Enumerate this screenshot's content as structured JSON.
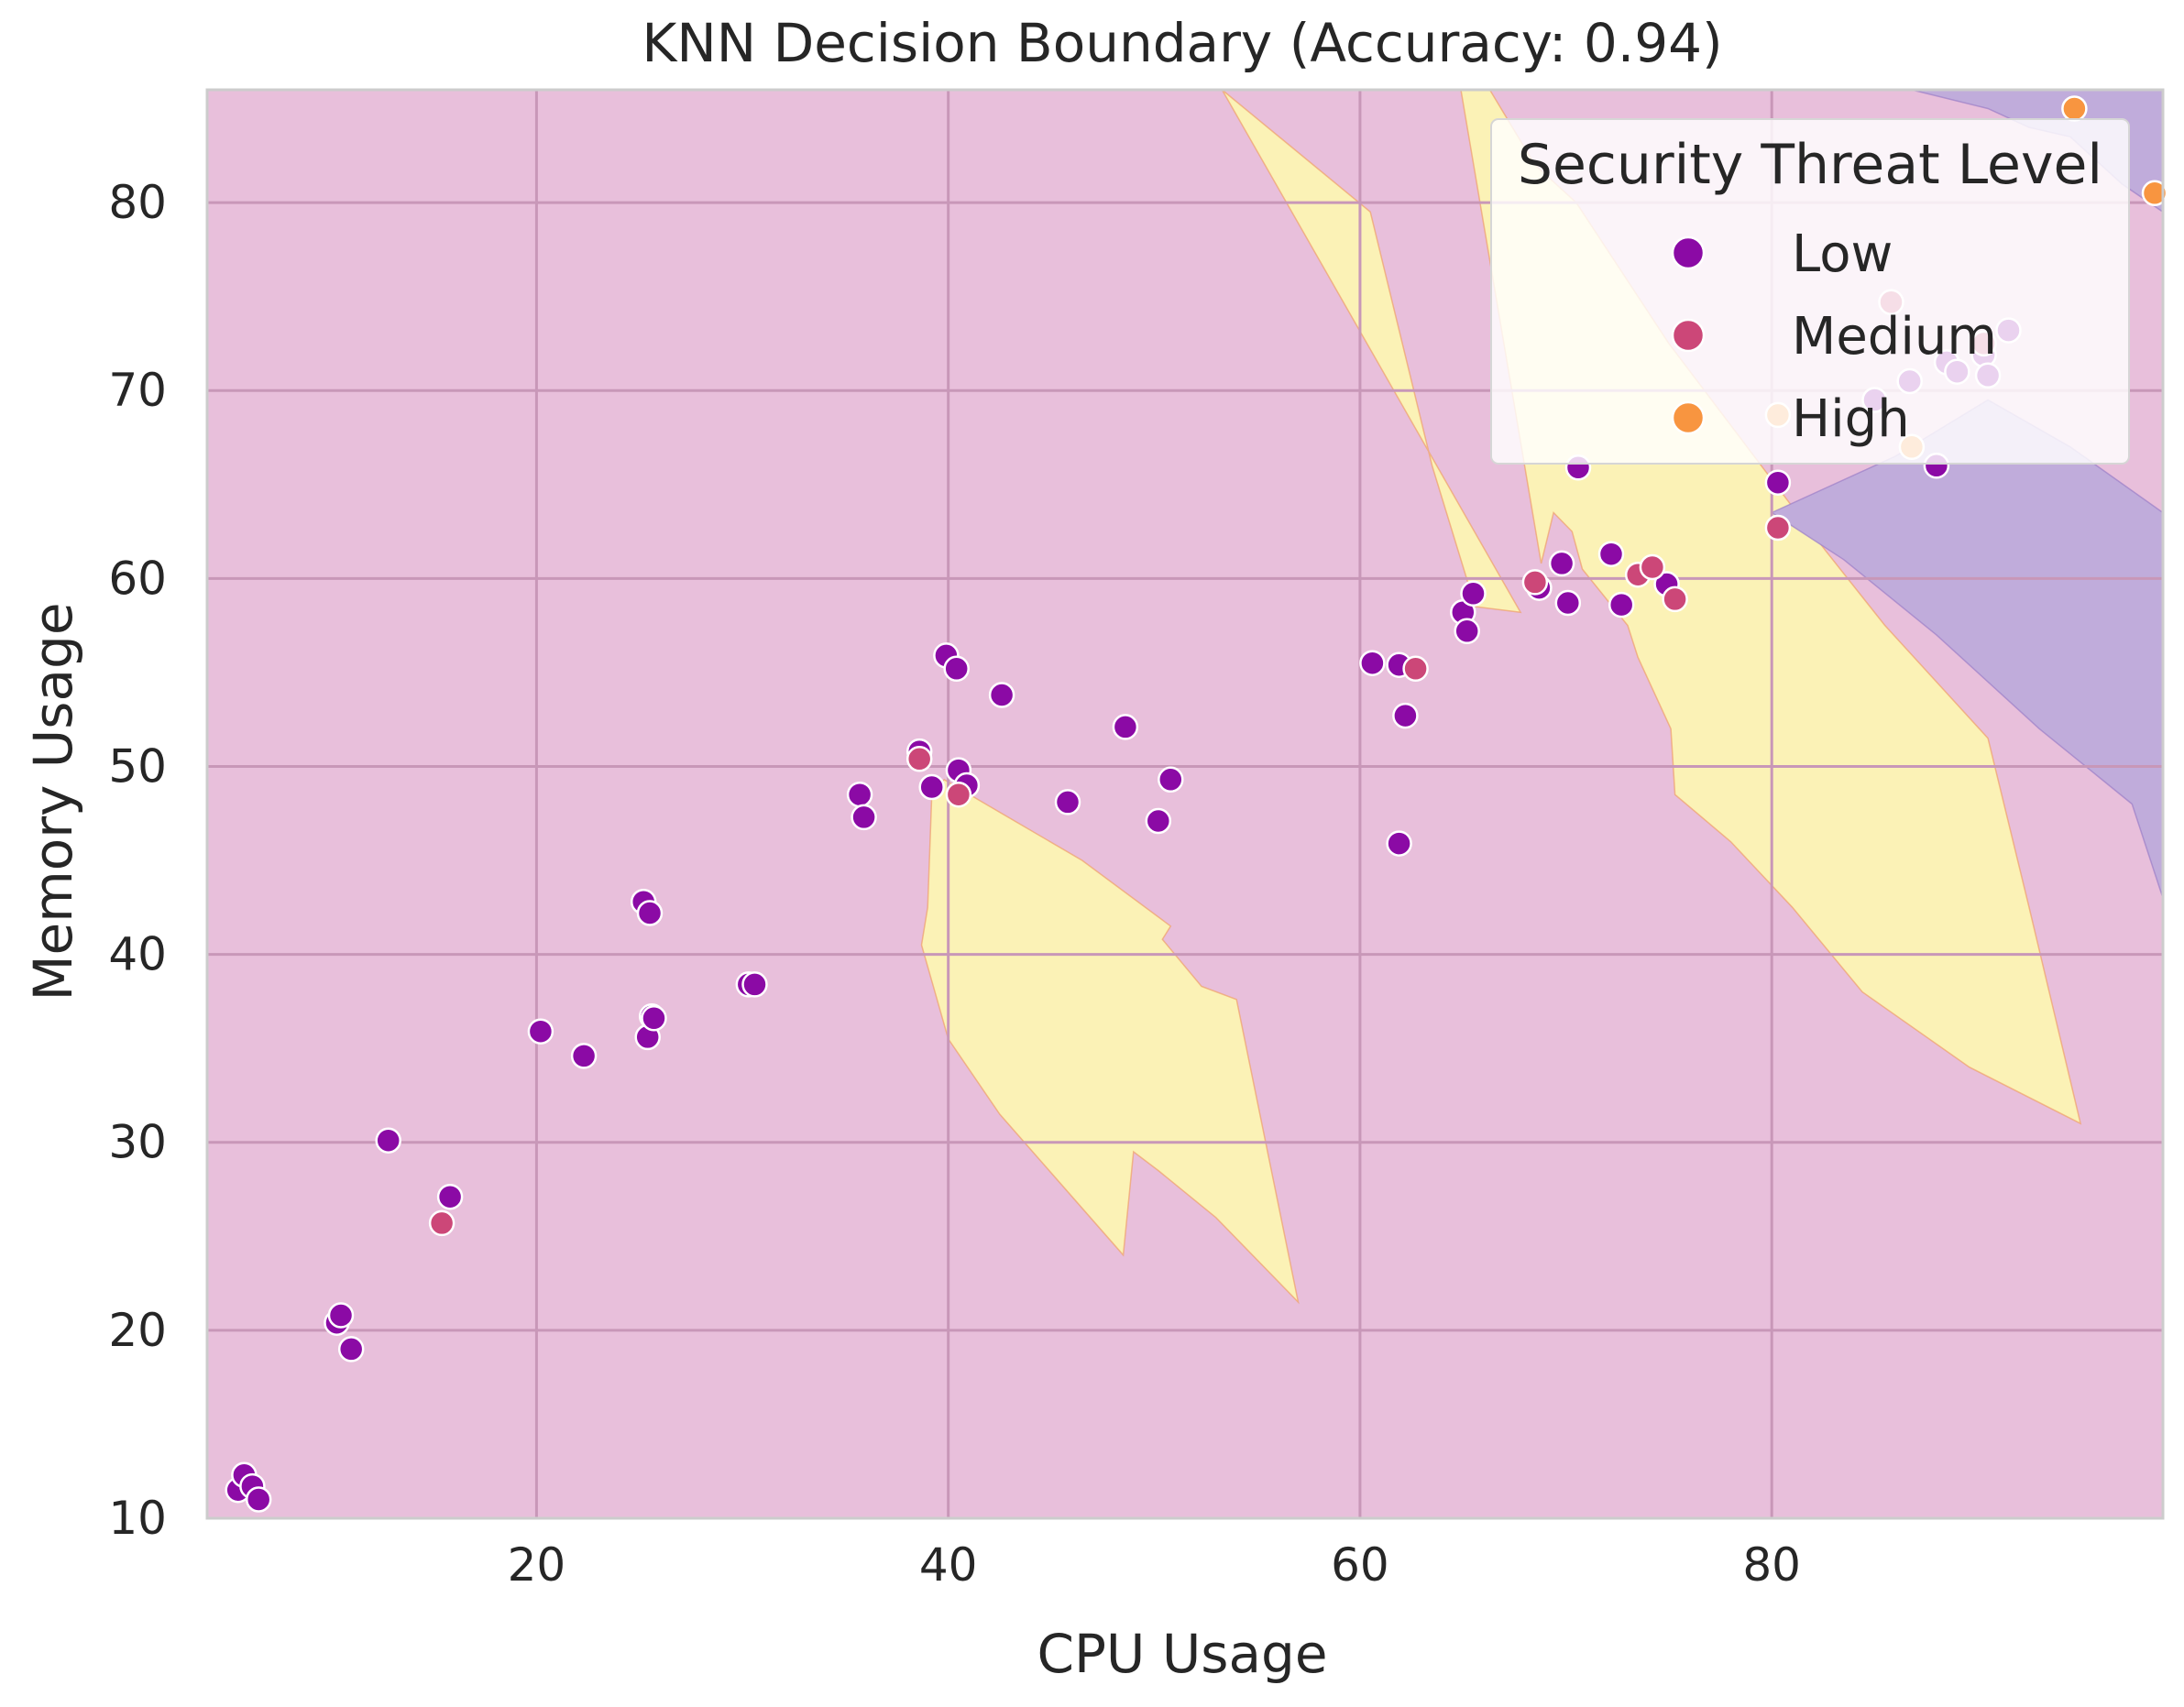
{
  "chart_data": {
    "type": "scatter",
    "title": "KNN Decision Boundary (Accuracy: 0.94)",
    "xlabel": "CPU Usage",
    "ylabel": "Memory Usage",
    "xlim": [
      4,
      99
    ],
    "ylim": [
      10,
      86
    ],
    "xticks": [
      20,
      40,
      60,
      80
    ],
    "yticks": [
      10,
      20,
      30,
      40,
      50,
      60,
      70,
      80
    ],
    "grid": true,
    "legend": {
      "title": "Security Threat Level",
      "placement": "top-right",
      "entries": [
        "Low",
        "Medium",
        "High"
      ]
    },
    "colors": {
      "Low": "#8b0aa5",
      "Medium": "#cc4778",
      "High": "#f89540",
      "region_low": "#e8bfdb",
      "region_medium": "#fbf2b6",
      "region_high": "#c0acdb",
      "grid": "#c897b8",
      "frame": "#cccccc"
    },
    "regions": [
      {
        "class": "Medium",
        "vertices": [
          [
            39.2,
            48.5
          ],
          [
            39.8,
            49.3
          ],
          [
            41.5,
            48.2
          ],
          [
            46.5,
            45.0
          ],
          [
            50.8,
            41.5
          ],
          [
            50.4,
            40.8
          ],
          [
            52.3,
            38.3
          ],
          [
            54.0,
            37.6
          ],
          [
            57.0,
            21.5
          ],
          [
            53.0,
            26.0
          ],
          [
            50.2,
            28.5
          ],
          [
            49.0,
            29.5
          ],
          [
            48.5,
            24.0
          ],
          [
            42.5,
            31.5
          ],
          [
            40.0,
            35.5
          ],
          [
            38.7,
            40.5
          ],
          [
            39.0,
            42.5
          ]
        ]
      },
      {
        "class": "Medium",
        "vertices": [
          [
            53.3,
            86.0
          ],
          [
            67.8,
            58.2
          ],
          [
            65.6,
            58.5
          ],
          [
            63.5,
            66.0
          ],
          [
            60.5,
            79.5
          ]
        ]
      },
      {
        "class": "Medium",
        "vertices": [
          [
            64.9,
            86.0
          ],
          [
            68.8,
            60.8
          ],
          [
            69.4,
            63.5
          ],
          [
            70.3,
            62.5
          ],
          [
            70.8,
            60.5
          ],
          [
            73.0,
            57.5
          ],
          [
            73.5,
            55.8
          ],
          [
            75.1,
            52.0
          ],
          [
            75.3,
            48.5
          ],
          [
            78.0,
            46.0
          ],
          [
            81.0,
            42.5
          ],
          [
            84.4,
            38.0
          ],
          [
            89.6,
            34.0
          ],
          [
            95.0,
            31.0
          ],
          [
            92.5,
            42.5
          ],
          [
            90.5,
            51.5
          ],
          [
            85.5,
            57.5
          ],
          [
            82.6,
            61.5
          ],
          [
            75.0,
            72.5
          ],
          [
            70.5,
            80.0
          ],
          [
            68.5,
            82.0
          ],
          [
            66.3,
            86.0
          ]
        ]
      },
      {
        "class": "High",
        "vertices": [
          [
            86.8,
            86.0
          ],
          [
            99.0,
            86.0
          ],
          [
            99.0,
            79.5
          ],
          [
            97.0,
            81.0
          ],
          [
            94.5,
            83.5
          ],
          [
            92.5,
            84.0
          ],
          [
            90.5,
            85.0
          ]
        ]
      },
      {
        "class": "High",
        "vertices": [
          [
            80.0,
            63.5
          ],
          [
            86.0,
            66.5
          ],
          [
            90.5,
            69.5
          ],
          [
            94.5,
            67.0
          ],
          [
            99.0,
            63.5
          ],
          [
            99.0,
            43.0
          ],
          [
            97.5,
            48.0
          ],
          [
            93.0,
            52.0
          ],
          [
            88.0,
            57.0
          ],
          [
            83.5,
            61.0
          ]
        ]
      }
    ],
    "series": [
      {
        "name": "Low",
        "x": [
          5.5,
          5.8,
          6.2,
          6.5,
          10.3,
          10.5,
          11.0,
          12.8,
          15.8,
          20.2,
          22.3,
          25.2,
          25.5,
          25.6,
          25.4,
          25.7,
          30.3,
          30.6,
          35.7,
          35.9,
          38.6,
          39.2,
          39.9,
          40.4,
          40.5,
          40.9,
          42.6,
          45.8,
          48.6,
          50.2,
          50.8,
          60.6,
          61.9,
          62.2,
          61.9,
          65.0,
          65.2,
          65.5,
          68.7,
          69.8,
          70.1,
          70.6,
          72.2,
          72.7,
          74.9,
          80.3,
          85.0,
          88.5,
          86.7,
          89.0,
          90.3,
          91.5,
          90.5,
          88.0
        ],
        "y": [
          11.5,
          12.3,
          11.7,
          11.0,
          20.4,
          20.8,
          19.0,
          30.1,
          27.1,
          35.9,
          34.6,
          42.8,
          42.2,
          36.7,
          35.6,
          36.6,
          38.4,
          38.4,
          48.5,
          47.3,
          50.8,
          48.9,
          55.9,
          55.2,
          49.8,
          49.0,
          53.8,
          48.1,
          52.1,
          47.1,
          49.3,
          55.5,
          55.4,
          52.7,
          45.9,
          58.2,
          57.2,
          59.2,
          59.5,
          60.8,
          58.7,
          65.9,
          61.3,
          58.6,
          59.7,
          65.1,
          69.5,
          71.5,
          70.5,
          71.0,
          71.9,
          73.2,
          70.8,
          66.0
        ]
      },
      {
        "name": "Medium",
        "x": [
          15.4,
          38.6,
          40.5,
          62.7,
          68.5,
          73.5,
          74.2,
          75.3,
          80.3,
          85.8,
          90.3
        ],
        "y": [
          25.7,
          50.4,
          48.5,
          55.2,
          59.8,
          60.2,
          60.6,
          58.9,
          62.7,
          74.7,
          72.5
        ]
      },
      {
        "name": "High",
        "x": [
          94.7,
          98.6,
          86.8,
          80.3
        ],
        "y": [
          85.0,
          80.5,
          67.0,
          68.7
        ]
      }
    ]
  }
}
